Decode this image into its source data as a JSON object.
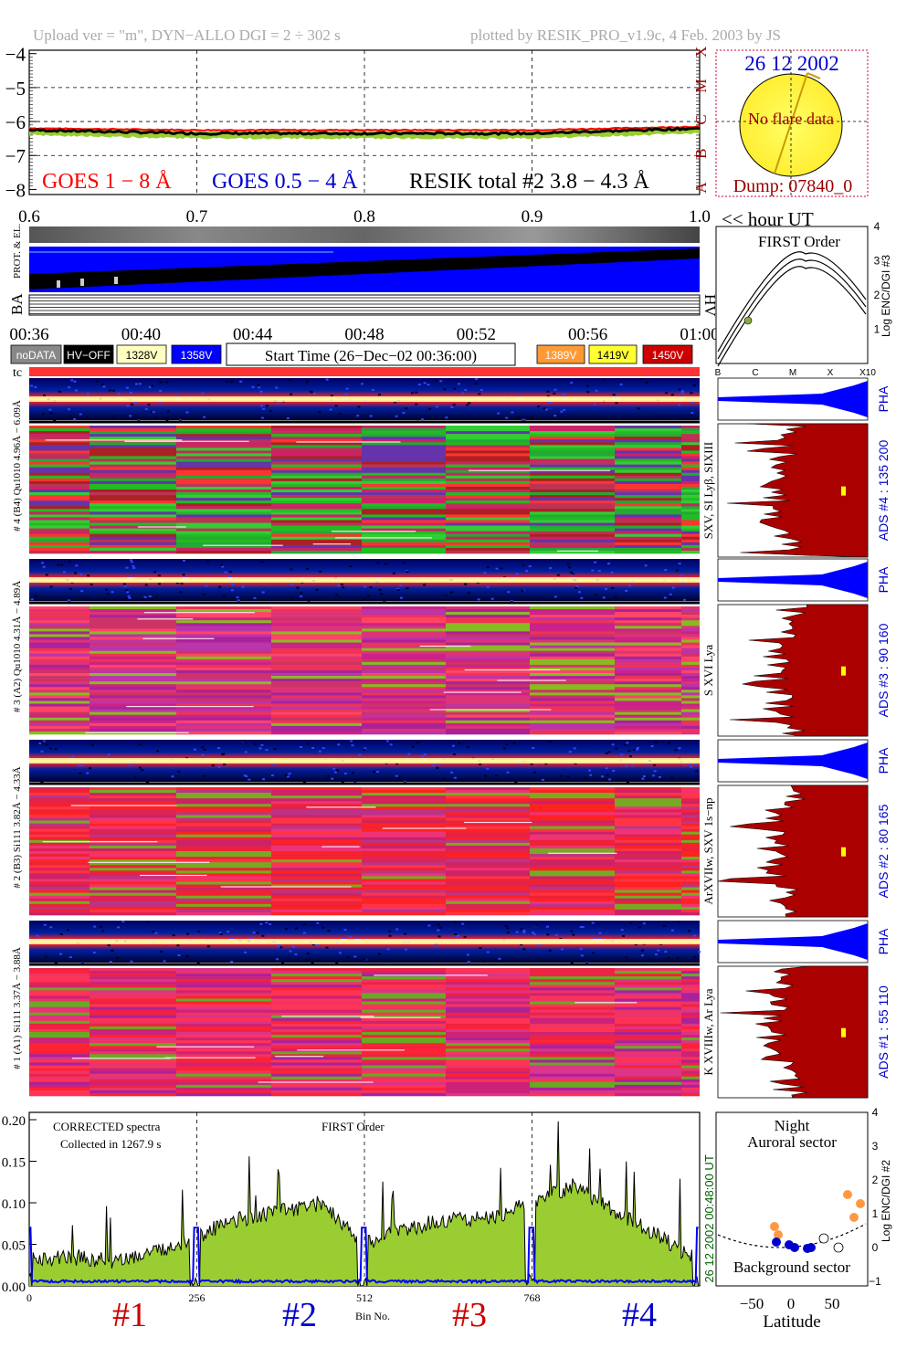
{
  "header": {
    "left": "Upload ver = \"m\", DYN−ALLO DGI =   2 ÷ 302 s",
    "right": "plotted by RESIK_PRO_v1.9c, 4 Feb. 2003 by JS"
  },
  "goes": {
    "yticks": [
      "−4",
      "−5",
      "−6",
      "−7",
      "−8"
    ],
    "xticks": [
      "0.6",
      "0.7",
      "0.8",
      "0.9",
      "1.0"
    ],
    "xunit": "<< hour UT",
    "flare_classes": [
      "X",
      "M",
      "C",
      "B",
      "A"
    ],
    "label_goes1": "GOES 1 − 8 Å",
    "label_goes05": "GOES 0.5 − 4 Å",
    "label_resik": "RESIK total #2  3.8 − 4.3 Å",
    "colors": {
      "goes1": "#ff0000",
      "goes05": "#0000cc",
      "resik": "#000000",
      "fill": "#9acd32"
    }
  },
  "sun": {
    "date": "26 12 2002",
    "note": "No flare data",
    "dump": "Dump: 07840_0"
  },
  "hv": {
    "left_label": "PROT. & EL.",
    "ba_label": "BA",
    "hv_label": "HV",
    "time_ticks": [
      "00:36",
      "00:40",
      "00:44",
      "00:48",
      "00:52",
      "00:56",
      "01:00"
    ],
    "legend": [
      {
        "label": "noDATA",
        "bg": "#888888",
        "fg": "#ffffff"
      },
      {
        "label": "HV−OFF",
        "bg": "#000000",
        "fg": "#ffffff"
      },
      {
        "label": "1328V",
        "bg": "#ffffc0",
        "fg": "#000000"
      },
      {
        "label": "1358V",
        "bg": "#0000ff",
        "fg": "#ffffff"
      },
      {
        "label": "1389V",
        "bg": "#ff9933",
        "fg": "#ffffff"
      },
      {
        "label": "1419V",
        "bg": "#ffff33",
        "fg": "#000000"
      },
      {
        "label": "1450V",
        "bg": "#cc0000",
        "fg": "#ffffff"
      }
    ],
    "start_time": "Start Time (26−Dec−02 00:36:00)"
  },
  "first_order_plot": {
    "title": "FIRST Order",
    "ylabel": "Log ENC/DGI #3",
    "yticks": [
      "1",
      "2",
      "3",
      "4"
    ],
    "xticks": [
      "B",
      "C",
      "M",
      "X",
      "X10"
    ]
  },
  "channels": [
    {
      "id": 4,
      "tc": "tc",
      "pha_label": "# 4 (B4) Qu1010 4.96Å − 6.09Å",
      "line_label": "SXV, SI Lyβ, SIXIII",
      "ads_label": "ADS #4 :   135 200",
      "pha": "PHA"
    },
    {
      "id": 3,
      "pha_label": "# 3 (A2) Qu1010 4.31Å − 4.89Å",
      "line_label": "S XVI Lya",
      "ads_label": "ADS #3 :   90 160",
      "pha": "PHA"
    },
    {
      "id": 2,
      "pha_label": "# 2 (B3) Si111 3.82Å − 4.33Å",
      "line_label": "ArXVIIw, SXV 1s−np",
      "ads_label": "ADS #2 :   80 165",
      "pha": "PHA"
    },
    {
      "id": 1,
      "pha_label": "# 1 (A1) Si111 3.37Å − 3.88Å",
      "line_label": "K XVIIIw, Ar Lya",
      "ads_label": "ADS #1 :   55 110",
      "pha": "PHA"
    }
  ],
  "spectrum": {
    "note1": "CORRECTED spectra",
    "note2": "Collected in   1267.9 s",
    "note3": "FIRST Order",
    "yticks": [
      "0.00",
      "0.05",
      "0.10",
      "0.15",
      "0.20"
    ],
    "xticks": [
      "0",
      "256",
      "512",
      "768"
    ],
    "xlabel": "Bin No.",
    "right_label1": "00:48:00 UT",
    "right_label2": "26 12 2002",
    "section_labels": [
      {
        "text": "#1",
        "color": "#cc0000"
      },
      {
        "text": "#2",
        "color": "#0000cc"
      },
      {
        "text": "#3",
        "color": "#cc0000"
      },
      {
        "text": "#4",
        "color": "#0000cc"
      }
    ]
  },
  "latitude_plot": {
    "title1": "Night",
    "title2": "Auroral sector",
    "bottom": "Background sector",
    "xlabel": "Latitude",
    "xticks": [
      "−50",
      "0",
      "50"
    ],
    "ylabel": "Log ENC/DGI #2",
    "yticks": [
      "−1",
      "0",
      "1",
      "2",
      "3",
      "4"
    ]
  },
  "chart_data": [
    {
      "type": "line",
      "title": "",
      "xlabel": "<< hour UT",
      "ylabel": "",
      "xlim": [
        0.6,
        1.0
      ],
      "ylim": [
        -8,
        -4
      ],
      "series": [
        {
          "name": "GOES 1 − 8 Å",
          "x": [
            0.6,
            0.7,
            0.8,
            0.9,
            1.0
          ],
          "values": [
            -6.2,
            -6.25,
            -6.25,
            -6.25,
            -6.15
          ]
        },
        {
          "name": "RESIK total #2  3.8 − 4.3 Å",
          "x": [
            0.6,
            0.7,
            0.8,
            0.9,
            1.0
          ],
          "values": [
            -6.25,
            -6.35,
            -6.35,
            -6.35,
            -6.2
          ]
        }
      ]
    },
    {
      "type": "line",
      "title": "",
      "xlabel": "Bin No.",
      "ylabel": "",
      "xlim": [
        0,
        1024
      ],
      "ylim": [
        0,
        0.2
      ],
      "series": [
        {
          "name": "FIRST Order",
          "x": [
            0,
            64,
            128,
            192,
            256,
            320,
            384,
            448,
            512,
            576,
            640,
            704,
            768,
            832,
            896,
            960,
            1024
          ],
          "values": [
            0.03,
            0.035,
            0.03,
            0.04,
            0.06,
            0.08,
            0.09,
            0.1,
            0.05,
            0.07,
            0.08,
            0.08,
            0.1,
            0.12,
            0.09,
            0.06,
            0.03
          ]
        }
      ]
    }
  ]
}
